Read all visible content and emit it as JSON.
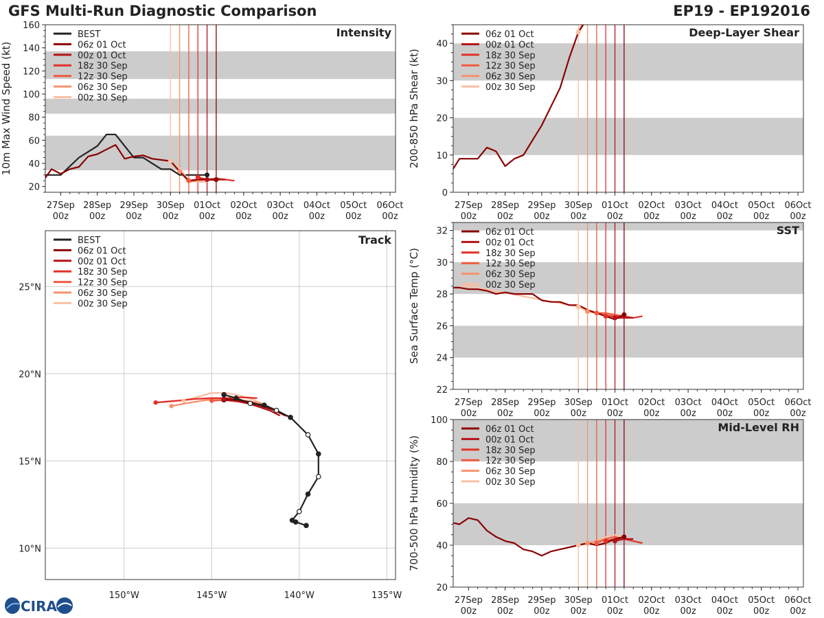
{
  "header": {
    "title": "GFS Multi-Run Diagnostic Comparison",
    "storm_id": "EP19 - EP192016"
  },
  "logo": {
    "text": "CIRA"
  },
  "legend_labels": {
    "best": "BEST",
    "runs": [
      "06z 01 Oct",
      "00z 01 Oct",
      "18z 30 Sep",
      "12z 30 Sep",
      "06z 30 Sep",
      "00z 30 Sep"
    ]
  },
  "colors": {
    "best": "#222222",
    "runs": [
      "#8b0000",
      "#b41218",
      "#e03128",
      "#f05a3f",
      "#f7916c",
      "#fbbfa3"
    ],
    "band": "#cccccc",
    "grid": "#cccccc"
  },
  "time_axis": {
    "ticks": [
      0,
      1,
      2,
      3,
      4,
      5,
      6,
      7,
      8,
      9
    ],
    "dates": [
      "27Sep",
      "28Sep",
      "29Sep",
      "30Sep",
      "01Oct",
      "02Oct",
      "03Oct",
      "04Oct",
      "05Oct",
      "06Oct"
    ],
    "hours": [
      "00z",
      "00z",
      "00z",
      "00z",
      "00z",
      "00z",
      "00z",
      "00z",
      "00z",
      "00z"
    ],
    "xlim": [
      -0.42,
      9.15
    ],
    "run_times": [
      4.25,
      4.0,
      3.75,
      3.5,
      3.25,
      3.0
    ]
  },
  "chart_data": [
    {
      "id": "intensity",
      "type": "line",
      "title": "Intensity",
      "ylabel": "10m Max Wind Speed (kt)",
      "ylim": [
        15,
        160
      ],
      "yticks": [
        20,
        40,
        60,
        80,
        100,
        120,
        140,
        160
      ],
      "bands": [
        [
          34,
          64
        ],
        [
          83,
          96
        ],
        [
          113,
          137
        ]
      ],
      "best": {
        "x": [
          -0.5,
          0,
          0.5,
          1,
          1.25,
          1.5,
          1.75,
          2,
          2.25,
          2.5,
          2.75,
          3,
          3.25,
          3.5,
          3.75,
          4
        ],
        "y": [
          30,
          30,
          45,
          55,
          65,
          65,
          55,
          45,
          45,
          40,
          35,
          35,
          30,
          30,
          30,
          30
        ]
      },
      "series": [
        {
          "name": "06z 01 Oct",
          "x": [
            -0.5,
            -0.25,
            0,
            0.25,
            0.5,
            0.75,
            1,
            1.25,
            1.5,
            1.75,
            2,
            2.25,
            2.5,
            2.75,
            3,
            3.25,
            3.5,
            3.75,
            4,
            4.25
          ],
          "y": [
            24,
            35,
            31,
            35,
            37,
            46,
            48,
            52,
            56,
            44,
            46,
            47,
            44,
            43,
            42,
            33,
            25,
            26,
            26,
            26
          ]
        },
        {
          "name": "00z 01 Oct",
          "x": [
            4,
            4.25,
            4.5
          ],
          "y": [
            26,
            26,
            26
          ]
        },
        {
          "name": "18z 30 Sep",
          "x": [
            3.75,
            4,
            4.25,
            4.5,
            4.75
          ],
          "y": [
            28,
            26,
            27,
            26,
            25
          ]
        },
        {
          "name": "12z 30 Sep",
          "x": [
            3.5,
            3.75,
            4,
            4.25,
            4.5
          ],
          "y": [
            25,
            26,
            26,
            26,
            26
          ]
        },
        {
          "name": "06z 30 Sep",
          "x": [
            3.25,
            3.5,
            3.75,
            4,
            4.25
          ],
          "y": [
            33,
            24,
            25,
            26,
            25
          ]
        },
        {
          "name": "00z 30 Sep",
          "x": [
            3,
            3.25,
            3.5,
            3.75,
            4
          ],
          "y": [
            42,
            36,
            25,
            24,
            24
          ]
        }
      ]
    },
    {
      "id": "shear",
      "type": "line",
      "title": "Deep-Layer Shear",
      "ylabel": "200-850 hPa Shear (kt)",
      "ylim": [
        0,
        45
      ],
      "yticks": [
        0,
        10,
        20,
        30,
        40
      ],
      "bands": [
        [
          10,
          20
        ],
        [
          30,
          40
        ]
      ],
      "series": [
        {
          "name": "06z 01 Oct",
          "x": [
            -0.5,
            -0.25,
            0,
            0.25,
            0.5,
            0.75,
            1,
            1.25,
            1.5,
            1.75,
            2,
            2.25,
            2.5,
            2.75,
            3,
            3.2
          ],
          "y": [
            5,
            9,
            9,
            9,
            12,
            11,
            7,
            9,
            10,
            14,
            18,
            23,
            28,
            36,
            43,
            46
          ]
        },
        {
          "name": "00z 01 Oct",
          "x": [],
          "y": []
        },
        {
          "name": "18z 30 Sep",
          "x": [],
          "y": []
        },
        {
          "name": "12z 30 Sep",
          "x": [],
          "y": []
        },
        {
          "name": "06z 30 Sep",
          "x": [
            3.0,
            3.1
          ],
          "y": [
            43,
            45
          ]
        },
        {
          "name": "00z 30 Sep",
          "x": [
            3.0,
            3.1
          ],
          "y": [
            43,
            45
          ]
        }
      ]
    },
    {
      "id": "track",
      "type": "line",
      "title": "Track",
      "xlim": [
        -154.5,
        -134.5
      ],
      "ylim": [
        8.2,
        28.2
      ],
      "lon_ticks": [
        -150,
        -145,
        -140,
        -135
      ],
      "lon_labels": [
        "150°W",
        "145°W",
        "140°W",
        "135°W"
      ],
      "lat_ticks": [
        10,
        15,
        20,
        25
      ],
      "lat_labels": [
        "10°N",
        "15°N",
        "20°N",
        "25°N"
      ],
      "best": {
        "lon": [
          -139.6,
          -140.2,
          -140.4,
          -140.0,
          -139.5,
          -138.9,
          -138.9,
          -139.5,
          -140.5,
          -141.3,
          -142.0,
          -142.8,
          -143.6,
          -144.3,
          -144.3
        ],
        "lat": [
          11.3,
          11.5,
          11.6,
          12.1,
          13.1,
          14.1,
          15.4,
          16.5,
          17.5,
          17.9,
          18.2,
          18.3,
          18.6,
          18.8,
          18.5
        ],
        "filled": [
          true,
          true,
          true,
          false,
          true,
          false,
          true,
          false,
          true,
          false,
          true,
          false,
          true,
          true,
          true
        ]
      },
      "series": [
        {
          "name": "06z 01 Oct",
          "lon": [
            -144.3,
            -143.5,
            -142.7,
            -142.1,
            -141.4,
            -140.8
          ],
          "lat": [
            18.55,
            18.5,
            18.35,
            18.15,
            17.9,
            17.6
          ]
        },
        {
          "name": "00z 01 Oct",
          "lon": [
            -144.3,
            -143.6,
            -142.9,
            -142.3,
            -141.7,
            -141.1
          ],
          "lat": [
            18.5,
            18.45,
            18.3,
            18.1,
            17.9,
            17.6
          ]
        },
        {
          "name": "18z 30 Sep",
          "lon": [
            -148.2,
            -147.0,
            -146.0,
            -145.0,
            -144.0,
            -143.3,
            -142.4
          ],
          "lat": [
            18.35,
            18.45,
            18.55,
            18.6,
            18.6,
            18.65,
            18.6
          ]
        },
        {
          "name": "12z 30 Sep",
          "lon": [
            -145.0,
            -144.3,
            -143.5,
            -142.7,
            -142.0,
            -141.3,
            -140.7
          ],
          "lat": [
            18.45,
            18.5,
            18.4,
            18.25,
            18.1,
            17.9,
            17.55
          ]
        },
        {
          "name": "06z 30 Sep",
          "lon": [
            -147.3,
            -146.5,
            -145.6,
            -144.8,
            -143.9,
            -143.0,
            -142.2,
            -141.5,
            -140.8
          ],
          "lat": [
            18.15,
            18.3,
            18.45,
            18.55,
            18.55,
            18.45,
            18.3,
            17.95,
            17.6
          ]
        },
        {
          "name": "00z 30 Sep",
          "lon": [
            -146.6,
            -145.9,
            -145.0,
            -144.2,
            -143.4,
            -142.6,
            -141.9,
            -141.2
          ],
          "lat": [
            18.45,
            18.65,
            18.9,
            18.9,
            18.75,
            18.5,
            18.2,
            17.85
          ]
        }
      ]
    },
    {
      "id": "sst",
      "type": "line",
      "title": "SST",
      "ylabel": "Sea Surface Temp (°C)",
      "ylim": [
        22,
        32.5
      ],
      "yticks": [
        22,
        24,
        26,
        28,
        30,
        32
      ],
      "bands": [
        [
          24,
          26
        ],
        [
          28,
          30
        ],
        [
          32,
          32.5
        ]
      ],
      "series": [
        {
          "name": "06z 01 Oct",
          "x": [
            -0.5,
            -0.25,
            0,
            0.25,
            0.5,
            0.75,
            1,
            1.25,
            1.5,
            1.75,
            2,
            2.25,
            2.5,
            2.75,
            3,
            3.25,
            3.5,
            3.75,
            4,
            4.25
          ],
          "y": [
            28.4,
            28.4,
            28.3,
            28.3,
            28.2,
            28.0,
            28.1,
            28.0,
            28.0,
            28.0,
            27.6,
            27.5,
            27.5,
            27.3,
            27.3,
            27.0,
            26.8,
            26.6,
            26.4,
            26.7
          ]
        },
        {
          "name": "00z 01 Oct",
          "x": [
            4,
            4.25,
            4.5
          ],
          "y": [
            26.5,
            26.5,
            26.5
          ]
        },
        {
          "name": "18z 30 Sep",
          "x": [
            3.75,
            4,
            4.25,
            4.5,
            4.75
          ],
          "y": [
            26.6,
            26.6,
            26.6,
            26.5,
            26.6
          ]
        },
        {
          "name": "12z 30 Sep",
          "x": [
            3.5,
            3.75,
            4,
            4.25,
            4.5
          ],
          "y": [
            26.8,
            26.8,
            26.7,
            26.6,
            26.5
          ]
        },
        {
          "name": "06z 30 Sep",
          "x": [
            3.25,
            3.5,
            3.75,
            4,
            4.25
          ],
          "y": [
            26.9,
            26.8,
            26.7,
            26.6,
            26.5
          ]
        },
        {
          "name": "00z 30 Sep",
          "x": [
            -0.25,
            0,
            0.25,
            3,
            3.25,
            3.5,
            3.75,
            4
          ],
          "y": [
            28.4,
            28.5,
            28.4,
            27.2,
            26.9,
            26.8,
            26.6,
            26.5
          ]
        }
      ]
    },
    {
      "id": "rh",
      "type": "line",
      "title": "Mid-Level RH",
      "ylabel": "700-500 hPa Humidity (%)",
      "ylim": [
        20,
        100
      ],
      "yticks": [
        20,
        40,
        60,
        80,
        100
      ],
      "bands": [
        [
          40,
          60
        ],
        [
          80,
          100
        ]
      ],
      "series": [
        {
          "name": "06z 01 Oct",
          "x": [
            -0.5,
            -0.25,
            0,
            0.25,
            0.5,
            0.75,
            1,
            1.25,
            1.5,
            1.75,
            2,
            2.25,
            2.5,
            2.75,
            3,
            3.25,
            3.5,
            3.75,
            4,
            4.25
          ],
          "y": [
            51,
            50,
            53,
            52,
            47,
            44,
            42,
            41,
            38,
            37,
            35,
            37,
            38,
            39,
            40,
            41,
            40,
            41,
            43,
            44
          ]
        },
        {
          "name": "00z 01 Oct",
          "x": [
            4,
            4.25,
            4.5
          ],
          "y": [
            42,
            43,
            43
          ]
        },
        {
          "name": "18z 30 Sep",
          "x": [
            3.75,
            4,
            4.25,
            4.5,
            4.75
          ],
          "y": [
            42,
            43,
            43,
            42,
            41
          ]
        },
        {
          "name": "12z 30 Sep",
          "x": [
            3.5,
            3.75,
            4,
            4.25,
            4.5
          ],
          "y": [
            41,
            43,
            44,
            43,
            42
          ]
        },
        {
          "name": "06z 30 Sep",
          "x": [
            3.25,
            3.5,
            3.75,
            4,
            4.25
          ],
          "y": [
            41,
            42,
            43,
            44,
            43
          ]
        },
        {
          "name": "00z 30 Sep",
          "x": [
            3,
            3.25,
            3.5,
            3.75,
            4,
            4.25
          ],
          "y": [
            40,
            41,
            42,
            44,
            45,
            44
          ]
        }
      ]
    }
  ]
}
